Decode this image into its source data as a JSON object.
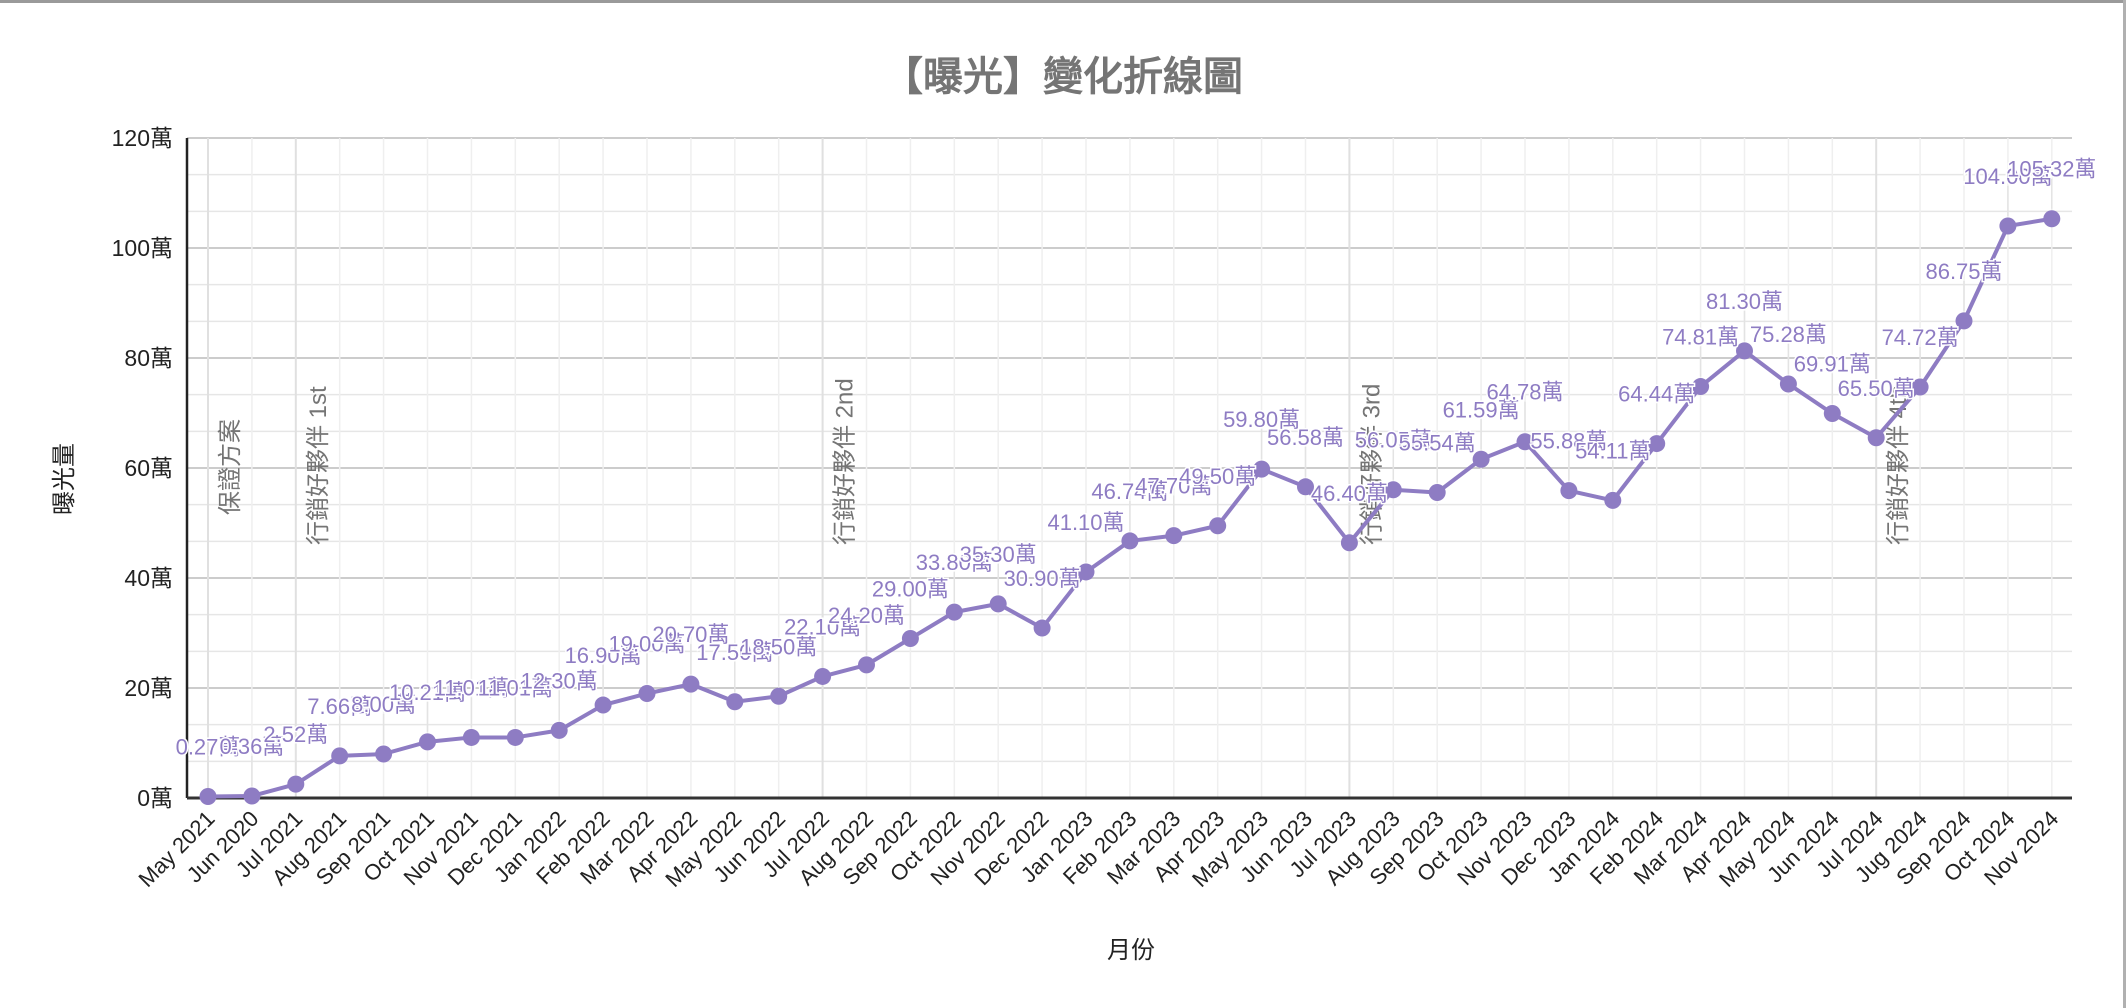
{
  "chart_data": {
    "type": "line",
    "title": "【曝光】變化折線圖",
    "xlabel": "月份",
    "ylabel": "曝光量",
    "ylim": [
      0,
      120
    ],
    "y_unit": "萬",
    "y_ticks": [
      "0萬",
      "20萬",
      "40萬",
      "60萬",
      "80萬",
      "100萬",
      "120萬"
    ],
    "grid": true,
    "legend": "none",
    "series_color": "#8e7cc3",
    "categories": [
      "May 2021",
      "Jun 2020",
      "Jul 2021",
      "Aug 2021",
      "Sep 2021",
      "Oct 2021",
      "Nov 2021",
      "Dec 2021",
      "Jan 2022",
      "Feb 2022",
      "Mar 2022",
      "Apr 2022",
      "May 2022",
      "Jun 2022",
      "Jul 2022",
      "Aug 2022",
      "Sep 2022",
      "Oct 2022",
      "Nov 2022",
      "Dec 2022",
      "Jan 2023",
      "Feb 2023",
      "Mar 2023",
      "Apr 2023",
      "May 2023",
      "Jun 2023",
      "Jul 2023",
      "Aug 2023",
      "Sep 2023",
      "Oct 2023",
      "Nov 2023",
      "Dec 2023",
      "Jan 2024",
      "Feb 2024",
      "Mar 2024",
      "Apr 2024",
      "May 2024",
      "Jun 2024",
      "Jul 2024",
      "Jug 2024",
      "Sep 2024",
      "Oct 2024",
      "Nov 2024"
    ],
    "series": [
      {
        "name": "曝光量",
        "values": [
          0.27,
          0.36,
          2.52,
          7.66,
          8.0,
          10.21,
          11.01,
          11.01,
          12.3,
          16.9,
          19.0,
          20.7,
          17.5,
          18.5,
          22.1,
          24.2,
          29.0,
          33.8,
          35.3,
          30.9,
          41.1,
          46.74,
          47.7,
          49.5,
          59.8,
          56.58,
          46.4,
          56.05,
          55.54,
          61.59,
          64.78,
          55.88,
          54.11,
          64.44,
          74.81,
          81.3,
          75.28,
          69.91,
          65.5,
          74.72,
          86.75,
          104.0,
          105.32
        ]
      }
    ],
    "annotations": [
      {
        "category_index": 0,
        "text": "保證方案"
      },
      {
        "category_index": 2,
        "text": "行銷好夥伴 1st"
      },
      {
        "category_index": 14,
        "text": "行銷好夥伴 2nd"
      },
      {
        "category_index": 26,
        "text": "行銷好夥伴 3rd"
      },
      {
        "category_index": 38,
        "text": "行銷好夥伴 4th"
      }
    ]
  }
}
